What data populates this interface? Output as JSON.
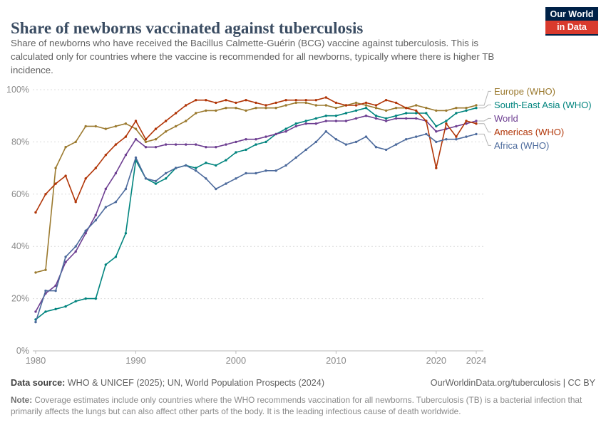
{
  "logo": {
    "line1": "Our World",
    "line2": "in Data",
    "bg_color": "#002147",
    "accent_color": "#d93a2d"
  },
  "header": {
    "title": "Share of newborns vaccinated against tuberculosis",
    "subtitle": "Share of newborns who have received the Bacillus Calmette-Guérin (BCG) vaccine against tuberculosis. This is calculated only for countries where the vaccine is recommended for all newborns, typically where there is higher TB incidence."
  },
  "chart_data": {
    "type": "line",
    "title": "Share of newborns vaccinated against tuberculosis",
    "xlabel": "",
    "ylabel": "",
    "ylim": [
      0,
      100
    ],
    "yticks": [
      0,
      20,
      40,
      60,
      80,
      100
    ],
    "ytick_suffix": "%",
    "xticks": [
      1980,
      1990,
      2000,
      2010,
      2020,
      2024
    ],
    "grid": "horizontal-dashed",
    "legend_position": "right",
    "x": [
      1980,
      1981,
      1982,
      1983,
      1984,
      1985,
      1986,
      1987,
      1988,
      1989,
      1990,
      1991,
      1992,
      1993,
      1994,
      1995,
      1996,
      1997,
      1998,
      1999,
      2000,
      2001,
      2002,
      2003,
      2004,
      2005,
      2006,
      2007,
      2008,
      2009,
      2010,
      2011,
      2012,
      2013,
      2014,
      2015,
      2016,
      2017,
      2018,
      2019,
      2020,
      2021,
      2022,
      2023,
      2024
    ],
    "series": [
      {
        "name": "Europe (WHO)",
        "color": "#9B7A2F",
        "values": [
          30,
          31,
          70,
          78,
          80,
          86,
          86,
          85,
          86,
          87,
          85,
          80,
          81,
          84,
          86,
          88,
          91,
          92,
          92,
          93,
          93,
          92,
          93,
          93,
          93,
          94,
          95,
          95,
          94,
          94,
          93,
          94,
          95,
          94,
          93,
          92,
          93,
          93,
          94,
          93,
          92,
          92,
          93,
          93,
          94
        ]
      },
      {
        "name": "South-East Asia (WHO)",
        "color": "#00847E",
        "values": [
          12,
          15,
          16,
          17,
          19,
          20,
          20,
          33,
          36,
          45,
          73,
          66,
          64,
          66,
          70,
          71,
          70,
          72,
          71,
          73,
          76,
          77,
          79,
          80,
          83,
          85,
          87,
          88,
          89,
          90,
          90,
          91,
          92,
          93,
          90,
          89,
          90,
          91,
          91,
          91,
          86,
          88,
          91,
          92,
          93
        ]
      },
      {
        "name": "World",
        "color": "#6D3E91",
        "values": [
          15,
          22,
          25,
          34,
          38,
          45,
          52,
          62,
          68,
          75,
          81,
          78,
          78,
          79,
          79,
          79,
          79,
          78,
          78,
          79,
          80,
          81,
          81,
          82,
          83,
          84,
          86,
          87,
          87,
          88,
          88,
          88,
          89,
          90,
          89,
          88,
          89,
          89,
          89,
          88,
          84,
          85,
          86,
          87,
          88
        ]
      },
      {
        "name": "Americas (WHO)",
        "color": "#B13507",
        "values": [
          53,
          60,
          64,
          67,
          57,
          66,
          70,
          75,
          79,
          82,
          88,
          81,
          85,
          88,
          91,
          94,
          96,
          96,
          95,
          96,
          95,
          96,
          95,
          94,
          95,
          96,
          96,
          96,
          96,
          97,
          95,
          94,
          94,
          95,
          94,
          96,
          95,
          93,
          92,
          88,
          70,
          87,
          82,
          88,
          87
        ]
      },
      {
        "name": "Africa (WHO)",
        "color": "#4C6A9C",
        "values": [
          11,
          23,
          23,
          36,
          40,
          46,
          50,
          55,
          57,
          62,
          74,
          66,
          65,
          68,
          70,
          71,
          69,
          66,
          62,
          64,
          66,
          68,
          68,
          69,
          69,
          71,
          74,
          77,
          80,
          84,
          81,
          79,
          80,
          82,
          78,
          77,
          79,
          81,
          82,
          83,
          80,
          81,
          81,
          82,
          83
        ]
      }
    ]
  },
  "footer": {
    "datasource_label": "Data source:",
    "datasource_text": " WHO & UNICEF (2025); UN, World Population Prospects (2024)",
    "link_text": "OurWorldinData.org/tuberculosis | CC BY",
    "note_label": "Note:",
    "note_text": " Coverage estimates include only countries where the WHO recommends vaccination for all newborns. Tuberculosis (TB) is a bacterial infection that primarily affects the lungs but can also affect other parts of the body. It is the leading infectious cause of death worldwide."
  }
}
